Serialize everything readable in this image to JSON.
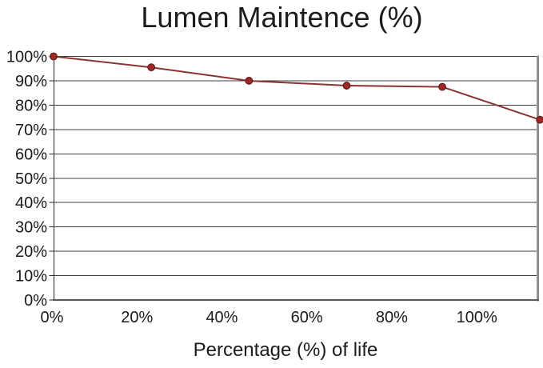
{
  "page": {
    "title": "Lumen Maintence (%)",
    "x_axis_title": "Percentage (%) of life"
  },
  "chart_data": {
    "type": "line",
    "title": "Lumen Maintence (%)",
    "xlabel": "Percentage (%) of life",
    "ylabel": "",
    "series": [
      {
        "name": "Lumen Maintence (%)",
        "x": [
          0,
          23,
          46,
          69,
          91.5,
          114.5
        ],
        "y": [
          100,
          95.5,
          90,
          88,
          87.5,
          74
        ]
      }
    ],
    "x_ticks": [
      0,
      20,
      40,
      60,
      80,
      100
    ],
    "x_tick_labels": [
      "0%",
      "20%",
      "40%",
      "60%",
      "80%",
      "100%"
    ],
    "y_ticks": [
      0,
      10,
      20,
      30,
      40,
      50,
      60,
      70,
      80,
      90,
      100
    ],
    "y_tick_labels": [
      "0%",
      "10%",
      "20%",
      "30%",
      "40%",
      "50%",
      "60%",
      "70%",
      "80%",
      "90%",
      "100%"
    ],
    "xlim": [
      0,
      113.9
    ],
    "ylim": [
      0,
      100
    ],
    "grid": "horizontal",
    "legend": "none",
    "colors": {
      "line": "#8a3331",
      "marker_fill": "#a32824",
      "marker_stroke": "#5f1715",
      "gridline": "#3f3f3f",
      "axis": "#262626",
      "bottom_axis": "#595959",
      "plot_border_right": "#8f8f8f",
      "text": "#1a1a1a"
    }
  }
}
